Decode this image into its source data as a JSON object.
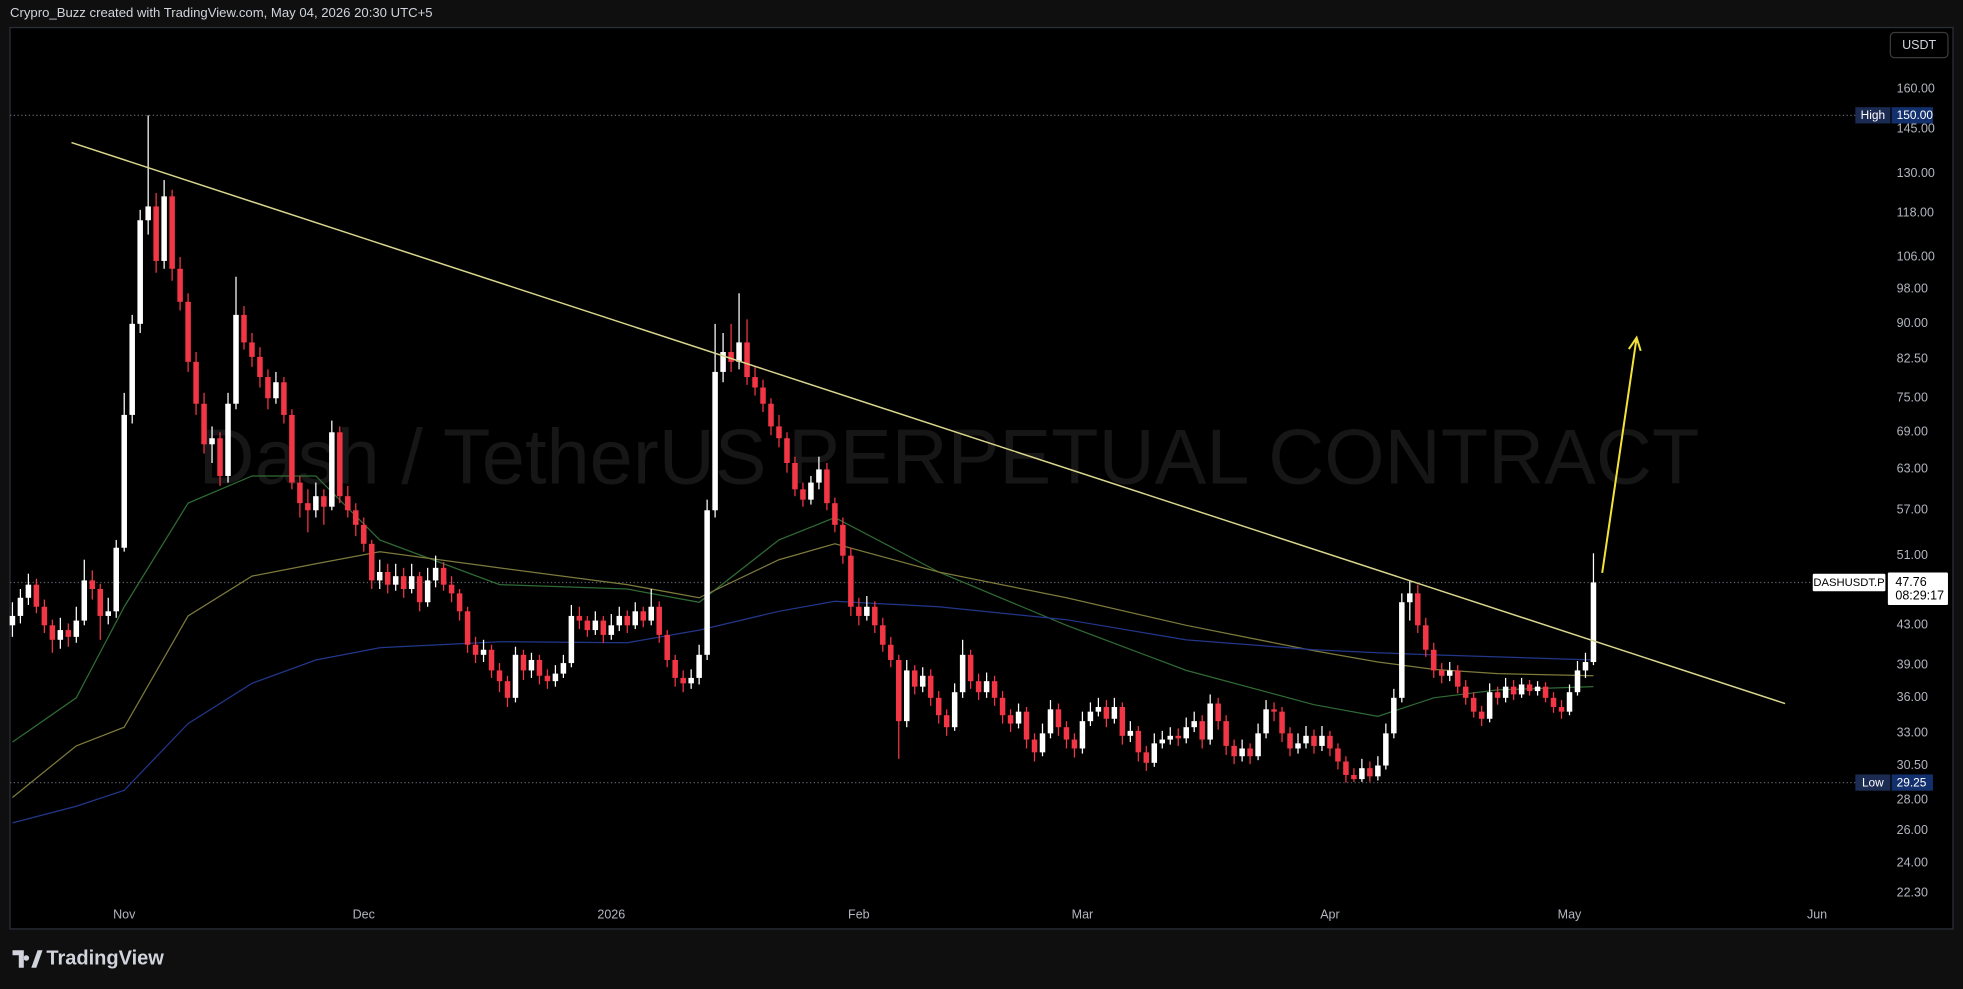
{
  "header": {
    "text": "Crypro_Buzz created with TradingView.com, May 04, 2026 20:30 UTC+5"
  },
  "chart_data": {
    "type": "candlestick",
    "title": "Dash / TetherUS PERPETUAL CONTRACT",
    "currency": "USDT",
    "log_scale": true,
    "ylim": [
      20.5,
      186
    ],
    "yticks": [
      {
        "value": 160,
        "label": "160.00"
      },
      {
        "value": 145,
        "label": "145.00"
      },
      {
        "value": 130,
        "label": "130.00"
      },
      {
        "value": 118,
        "label": "118.00"
      },
      {
        "value": 106,
        "label": "106.00"
      },
      {
        "value": 98,
        "label": "98.00"
      },
      {
        "value": 90,
        "label": "90.00"
      },
      {
        "value": 82.5,
        "label": "82.50"
      },
      {
        "value": 75,
        "label": "75.00"
      },
      {
        "value": 69,
        "label": "69.00"
      },
      {
        "value": 63,
        "label": "63.00"
      },
      {
        "value": 57,
        "label": "57.00"
      },
      {
        "value": 51,
        "label": "51.00"
      },
      {
        "value": 43,
        "label": "43.00"
      },
      {
        "value": 39,
        "label": "39.00"
      },
      {
        "value": 36,
        "label": "36.00"
      },
      {
        "value": 33,
        "label": "33.00"
      },
      {
        "value": 30.5,
        "label": "30.50"
      },
      {
        "value": 28,
        "label": "28.00"
      },
      {
        "value": 26,
        "label": "26.00"
      },
      {
        "value": 24,
        "label": "24.00"
      },
      {
        "value": 22.3,
        "label": "22.30"
      }
    ],
    "xlim": [
      -0.3,
      234.4
    ],
    "xticks": [
      {
        "value": 14,
        "label": "Nov"
      },
      {
        "value": 44,
        "label": "Dec"
      },
      {
        "value": 75,
        "label": "2026"
      },
      {
        "value": 106,
        "label": "Feb"
      },
      {
        "value": 134,
        "label": "Mar"
      },
      {
        "value": 165,
        "label": "Apr"
      },
      {
        "value": 195,
        "label": "May"
      },
      {
        "value": 226,
        "label": "Jun"
      }
    ],
    "up_color": "#ffffff",
    "down_color": "#f23645",
    "candles": [
      [
        43,
        45.5,
        41.8,
        44
      ],
      [
        44,
        47,
        43.2,
        46
      ],
      [
        46,
        48.8,
        45.2,
        47.5
      ],
      [
        47.5,
        48.2,
        44.3,
        45
      ],
      [
        45,
        45.8,
        42.2,
        43
      ],
      [
        43,
        43.6,
        40.2,
        41.5
      ],
      [
        41.5,
        43.8,
        40.6,
        42.5
      ],
      [
        42.5,
        43.2,
        40.8,
        41.8
      ],
      [
        41.8,
        45,
        41.2,
        43.5
      ],
      [
        43.5,
        50.5,
        43,
        48
      ],
      [
        48,
        49.2,
        45.8,
        47
      ],
      [
        47,
        47.6,
        41.5,
        44
      ],
      [
        44,
        46,
        43.1,
        44.5
      ],
      [
        44.5,
        53,
        43.8,
        52
      ],
      [
        52,
        76,
        51.5,
        72
      ],
      [
        72,
        92,
        70.5,
        90
      ],
      [
        90,
        119,
        88,
        116
      ],
      [
        116,
        150,
        112,
        120
      ],
      [
        120,
        124,
        102,
        105
      ],
      [
        105,
        128,
        103,
        123
      ],
      [
        123,
        125,
        100,
        103
      ],
      [
        103,
        106,
        93,
        95
      ],
      [
        95,
        97,
        80,
        82
      ],
      [
        82,
        84,
        72,
        74
      ],
      [
        74,
        76,
        65.5,
        67
      ],
      [
        67,
        70,
        64,
        68
      ],
      [
        68,
        69,
        60.5,
        62
      ],
      [
        62,
        76,
        61,
        74
      ],
      [
        74,
        101,
        73,
        92
      ],
      [
        92,
        94,
        84.5,
        86
      ],
      [
        86,
        88,
        81,
        83
      ],
      [
        83,
        85,
        77,
        79
      ],
      [
        79,
        80.5,
        73,
        75
      ],
      [
        75,
        80,
        74,
        78
      ],
      [
        78,
        79,
        70.5,
        72
      ],
      [
        72,
        73,
        60,
        61
      ],
      [
        61,
        62,
        56,
        58
      ],
      [
        58,
        60,
        54,
        57
      ],
      [
        57,
        61,
        56,
        59
      ],
      [
        59,
        60,
        55,
        57.5
      ],
      [
        57.5,
        71,
        57,
        69
      ],
      [
        69,
        70,
        58,
        59
      ],
      [
        59,
        60.5,
        56,
        57
      ],
      [
        57,
        58,
        53.5,
        55
      ],
      [
        55,
        56,
        51.5,
        52.5
      ],
      [
        52.5,
        53,
        47,
        48
      ],
      [
        48,
        50.5,
        47,
        49
      ],
      [
        49,
        50,
        46.5,
        47.5
      ],
      [
        47.5,
        50,
        46.8,
        48.5
      ],
      [
        48.5,
        49.5,
        46,
        47
      ],
      [
        47,
        50,
        46.5,
        48.5
      ],
      [
        48.5,
        49,
        44.5,
        45.5
      ],
      [
        45.5,
        49.5,
        45,
        48
      ],
      [
        48,
        51,
        47.2,
        49.5
      ],
      [
        49.5,
        50.2,
        46.8,
        47.5
      ],
      [
        47.5,
        48.5,
        45.5,
        46.5
      ],
      [
        46.5,
        47,
        43.5,
        44.5
      ],
      [
        44.5,
        45,
        40.2,
        41
      ],
      [
        41,
        41.8,
        39.2,
        40
      ],
      [
        40,
        41.5,
        39.3,
        40.5
      ],
      [
        40.5,
        41,
        37.8,
        38.5
      ],
      [
        38.5,
        39.2,
        36.5,
        37.5
      ],
      [
        37.5,
        38,
        35.2,
        36
      ],
      [
        36,
        40.8,
        35.6,
        40
      ],
      [
        40,
        40.5,
        37.6,
        38.5
      ],
      [
        38.5,
        40.2,
        37.8,
        39.5
      ],
      [
        39.5,
        40,
        37.2,
        38
      ],
      [
        38,
        38.6,
        36.8,
        37.5
      ],
      [
        37.5,
        39,
        37,
        38.2
      ],
      [
        38.2,
        40,
        37.8,
        39.2
      ],
      [
        39.2,
        45.2,
        38.8,
        44
      ],
      [
        44,
        45,
        42.6,
        43.5
      ],
      [
        43.5,
        44,
        41.8,
        42.5
      ],
      [
        42.5,
        44.5,
        42,
        43.5
      ],
      [
        43.5,
        44,
        41.2,
        42
      ],
      [
        42,
        44.2,
        41.5,
        43
      ],
      [
        43,
        45,
        42.4,
        44
      ],
      [
        44,
        44.6,
        42.2,
        43
      ],
      [
        43,
        45.5,
        42.6,
        44.5
      ],
      [
        44.5,
        45,
        42.8,
        43.5
      ],
      [
        43.5,
        47,
        43,
        45
      ],
      [
        45,
        45.6,
        41.2,
        42
      ],
      [
        42,
        42.5,
        38.8,
        39.5
      ],
      [
        39.5,
        40,
        37,
        37.8
      ],
      [
        37.8,
        38.5,
        36.5,
        37.3
      ],
      [
        37.3,
        38.6,
        36.8,
        37.8
      ],
      [
        37.8,
        41,
        37.2,
        40
      ],
      [
        40,
        58.5,
        39.5,
        57
      ],
      [
        57,
        90,
        56,
        80
      ],
      [
        80,
        88,
        78,
        84
      ],
      [
        84,
        90,
        80,
        82
      ],
      [
        82,
        97,
        80.5,
        86
      ],
      [
        86,
        91,
        77.5,
        79
      ],
      [
        79,
        81,
        75.5,
        77
      ],
      [
        77,
        78.5,
        72.5,
        74
      ],
      [
        74,
        75,
        68.5,
        70
      ],
      [
        70,
        72,
        66.5,
        68
      ],
      [
        68,
        69,
        62.5,
        64
      ],
      [
        64,
        65,
        59,
        60
      ],
      [
        60,
        61,
        57.5,
        58.5
      ],
      [
        58.5,
        62,
        57.8,
        61
      ],
      [
        61,
        65,
        60,
        63
      ],
      [
        63,
        64,
        57,
        58
      ],
      [
        58,
        58.8,
        54,
        55
      ],
      [
        55,
        56,
        50,
        51
      ],
      [
        51,
        52,
        44,
        45
      ],
      [
        45,
        46,
        43,
        44
      ],
      [
        44,
        46.2,
        43.5,
        45
      ],
      [
        45,
        45.6,
        42.2,
        43
      ],
      [
        43,
        43.8,
        40.3,
        41
      ],
      [
        41,
        41.8,
        38.8,
        39.5
      ],
      [
        39.5,
        40,
        31,
        34
      ],
      [
        34,
        39.5,
        33.5,
        38.5
      ],
      [
        38.5,
        39,
        36.3,
        37
      ],
      [
        37,
        38.8,
        36.5,
        38
      ],
      [
        38,
        38.6,
        35.3,
        36
      ],
      [
        36,
        36.6,
        33.8,
        34.5
      ],
      [
        34.5,
        35,
        32.8,
        33.5
      ],
      [
        33.5,
        37.3,
        33.2,
        36.5
      ],
      [
        36.5,
        41.5,
        36,
        40
      ],
      [
        40,
        40.5,
        36.8,
        37.5
      ],
      [
        37.5,
        38.2,
        35.8,
        36.5
      ],
      [
        36.5,
        38.3,
        36,
        37.5
      ],
      [
        37.5,
        38,
        35.3,
        36
      ],
      [
        36,
        36.6,
        33.8,
        34.5
      ],
      [
        34.5,
        35,
        33.1,
        33.8
      ],
      [
        33.8,
        35.5,
        33.4,
        34.8
      ],
      [
        34.8,
        35.2,
        31.8,
        32.5
      ],
      [
        32.5,
        33,
        30.8,
        31.5
      ],
      [
        31.5,
        33.8,
        31.2,
        33
      ],
      [
        33,
        35.8,
        32.6,
        35
      ],
      [
        35,
        35.5,
        32.8,
        33.5
      ],
      [
        33.5,
        34,
        31.8,
        32.5
      ],
      [
        32.5,
        33,
        31.1,
        31.8
      ],
      [
        31.8,
        34.8,
        31.4,
        34
      ],
      [
        34,
        35.6,
        33.6,
        34.8
      ],
      [
        34.8,
        36,
        34.4,
        35.2
      ],
      [
        35.2,
        35.8,
        33.5,
        34.2
      ],
      [
        34.2,
        36,
        33.8,
        35.2
      ],
      [
        35.2,
        35.6,
        32.1,
        32.8
      ],
      [
        32.8,
        34,
        32.3,
        33.2
      ],
      [
        33.2,
        33.6,
        30.8,
        31.5
      ],
      [
        31.5,
        32,
        30.1,
        30.7
      ],
      [
        30.7,
        33,
        30.4,
        32.2
      ],
      [
        32.2,
        33.2,
        31.8,
        32.5
      ],
      [
        32.5,
        33.5,
        32.1,
        32.8
      ],
      [
        32.8,
        33.4,
        32,
        32.6
      ],
      [
        32.6,
        34.3,
        32.2,
        33.5
      ],
      [
        33.5,
        34.8,
        33.1,
        34
      ],
      [
        34,
        34.5,
        31.8,
        32.5
      ],
      [
        32.5,
        36.3,
        32.1,
        35.5
      ],
      [
        35.5,
        36,
        33.3,
        34
      ],
      [
        34,
        34.5,
        31.3,
        32
      ],
      [
        32,
        32.5,
        30.6,
        31.2
      ],
      [
        31.2,
        32.5,
        30.8,
        31.8
      ],
      [
        31.8,
        32.2,
        30.6,
        31.2
      ],
      [
        31.2,
        33.8,
        30.9,
        33
      ],
      [
        33,
        35.8,
        32.6,
        35
      ],
      [
        35,
        35.6,
        34,
        34.8
      ],
      [
        34.8,
        35.2,
        32.3,
        33
      ],
      [
        33,
        33.5,
        31.2,
        31.8
      ],
      [
        31.8,
        33,
        31.4,
        32.2
      ],
      [
        32.2,
        33.6,
        31.8,
        32.8
      ],
      [
        32.8,
        33.3,
        31.4,
        32
      ],
      [
        32,
        33.6,
        31.6,
        32.8
      ],
      [
        32.8,
        33.2,
        31.2,
        31.8
      ],
      [
        31.8,
        32.2,
        30.2,
        30.8
      ],
      [
        30.8,
        31.2,
        29.25,
        29.8
      ],
      [
        29.8,
        30.3,
        29.3,
        29.5
      ],
      [
        29.5,
        31,
        29.3,
        30.3
      ],
      [
        30.3,
        30.8,
        29.3,
        29.7
      ],
      [
        29.7,
        31.2,
        29.4,
        30.5
      ],
      [
        30.5,
        33.8,
        30.2,
        33
      ],
      [
        33,
        36.8,
        32.6,
        36
      ],
      [
        36,
        46.5,
        35.6,
        45.5
      ],
      [
        45.5,
        47.9,
        43.5,
        46.5
      ],
      [
        46.5,
        47.5,
        42.2,
        43
      ],
      [
        43,
        43.8,
        39.8,
        40.5
      ],
      [
        40.5,
        41.2,
        37.8,
        38.5
      ],
      [
        38.5,
        39.2,
        37.3,
        38
      ],
      [
        38,
        39.3,
        37.5,
        38.5
      ],
      [
        38.5,
        39,
        36.4,
        37
      ],
      [
        37,
        37.6,
        35.4,
        36
      ],
      [
        36,
        36.5,
        34.3,
        34.8
      ],
      [
        34.8,
        35.3,
        33.6,
        34.2
      ],
      [
        34.2,
        37.3,
        33.9,
        36.5
      ],
      [
        36.5,
        37,
        35.4,
        36
      ],
      [
        36,
        37.8,
        35.6,
        37
      ],
      [
        37,
        37.6,
        35.8,
        36.3
      ],
      [
        36.3,
        37.8,
        36,
        37.2
      ],
      [
        37.2,
        37.6,
        36.2,
        36.6
      ],
      [
        36.6,
        37.5,
        36.2,
        37
      ],
      [
        37,
        37.4,
        35.6,
        36
      ],
      [
        36,
        36.5,
        34.7,
        35.2
      ],
      [
        35.2,
        35.8,
        34.2,
        34.8
      ],
      [
        34.8,
        37.2,
        34.5,
        36.5
      ],
      [
        36.5,
        39.4,
        36.2,
        38.5
      ],
      [
        38.5,
        40.2,
        37.8,
        39.3
      ],
      [
        39.3,
        51.3,
        39,
        47.76
      ]
    ],
    "moving_averages": [
      {
        "color": "#2f6b35",
        "x": [
          0,
          8,
          14,
          22,
          30,
          38,
          46,
          61,
          77,
          86,
          96,
          103,
          116,
          132,
          147,
          163,
          171,
          178,
          186,
          198
        ],
        "values": [
          32.3,
          36,
          45,
          58,
          62,
          62,
          53,
          47.5,
          47,
          45.5,
          53,
          56,
          49,
          43,
          38.5,
          35.4,
          34.4,
          36,
          36.7,
          37
        ]
      },
      {
        "color": "#7d7a3c",
        "x": [
          0,
          8,
          14,
          22,
          30,
          38,
          46,
          61,
          77,
          86,
          96,
          103,
          116,
          132,
          147,
          163,
          171,
          178,
          186,
          198
        ],
        "values": [
          28.2,
          32,
          33.5,
          44,
          48.5,
          50,
          51.5,
          49.5,
          47.5,
          46,
          50.5,
          52.5,
          49,
          46,
          43,
          40.4,
          39.3,
          38.6,
          38.2,
          38
        ]
      },
      {
        "color": "#22368a",
        "x": [
          0,
          8,
          14,
          22,
          30,
          38,
          46,
          61,
          77,
          86,
          96,
          103,
          116,
          132,
          147,
          163,
          171,
          178,
          186,
          198
        ],
        "values": [
          26.5,
          27.6,
          28.7,
          33.8,
          37.3,
          39.5,
          40.7,
          41.3,
          41.2,
          42.5,
          44.5,
          45.6,
          45,
          43.6,
          41.5,
          40.5,
          40.2,
          40,
          39.8,
          39.5
        ]
      }
    ],
    "trendline": {
      "color": "#d9d58c",
      "x": [
        7.4,
        222
      ],
      "values": [
        140.3,
        35.5
      ]
    },
    "arrow": {
      "color": "#f2e33a",
      "x": [
        199.1,
        203.4
      ],
      "values": [
        48.9,
        87
      ]
    },
    "high": {
      "name": "High",
      "value": 150,
      "label": "150.00"
    },
    "low": {
      "name": "Low",
      "value": 29.25
    },
    "last": {
      "symbol": "DASHUSDT.P",
      "value": 47.76,
      "countdown": "08:29:17"
    }
  },
  "footer": {
    "logo": "TradingView"
  }
}
